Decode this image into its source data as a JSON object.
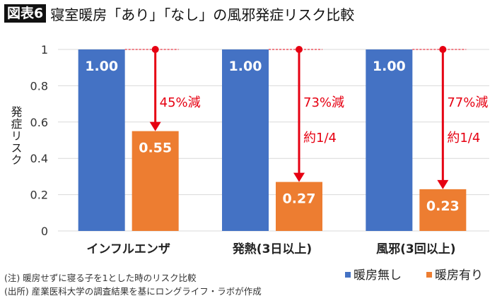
{
  "header": {
    "badge": "図表6",
    "title": "寝室暖房「あり」「なし」の風邪発症リスク比較"
  },
  "notes": [
    "(注) 暖房せずに寝る子を1とした時のリスク比較",
    "(出所) 産業医科大学の調査結果を基にロングライフ・ラボが作成"
  ],
  "chart_data": {
    "type": "bar",
    "title": "寝室暖房「あり」「なし」の風邪発症リスク比較",
    "ylabel": "発症リスク",
    "xlabel": "",
    "ylim": [
      0,
      1
    ],
    "yticks": [
      "0",
      "0.2",
      "0.4",
      "0.6",
      "0.8",
      "1"
    ],
    "grid": true,
    "legend": "bottom-right",
    "categories": [
      "インフルエンザ",
      "発熱(3日以上)",
      "風邪(3回以上)"
    ],
    "series": [
      {
        "name": "暖房無し",
        "color": "#4472C4",
        "values": [
          1.0,
          1.0,
          1.0
        ],
        "labels": [
          "1.00",
          "1.00",
          "1.00"
        ]
      },
      {
        "name": "暖房有り",
        "color": "#ED7D31",
        "values": [
          0.55,
          0.27,
          0.23
        ],
        "labels": [
          "0.55",
          "0.27",
          "0.23"
        ]
      }
    ],
    "annotations": [
      {
        "category": "インフルエンザ",
        "lines": [
          "45%減"
        ]
      },
      {
        "category": "発熱(3日以上)",
        "lines": [
          "73%減",
          "約1/4"
        ]
      },
      {
        "category": "風邪(3回以上)",
        "lines": [
          "77%減",
          "約1/4"
        ]
      }
    ],
    "annotation_color": "#E60012"
  }
}
